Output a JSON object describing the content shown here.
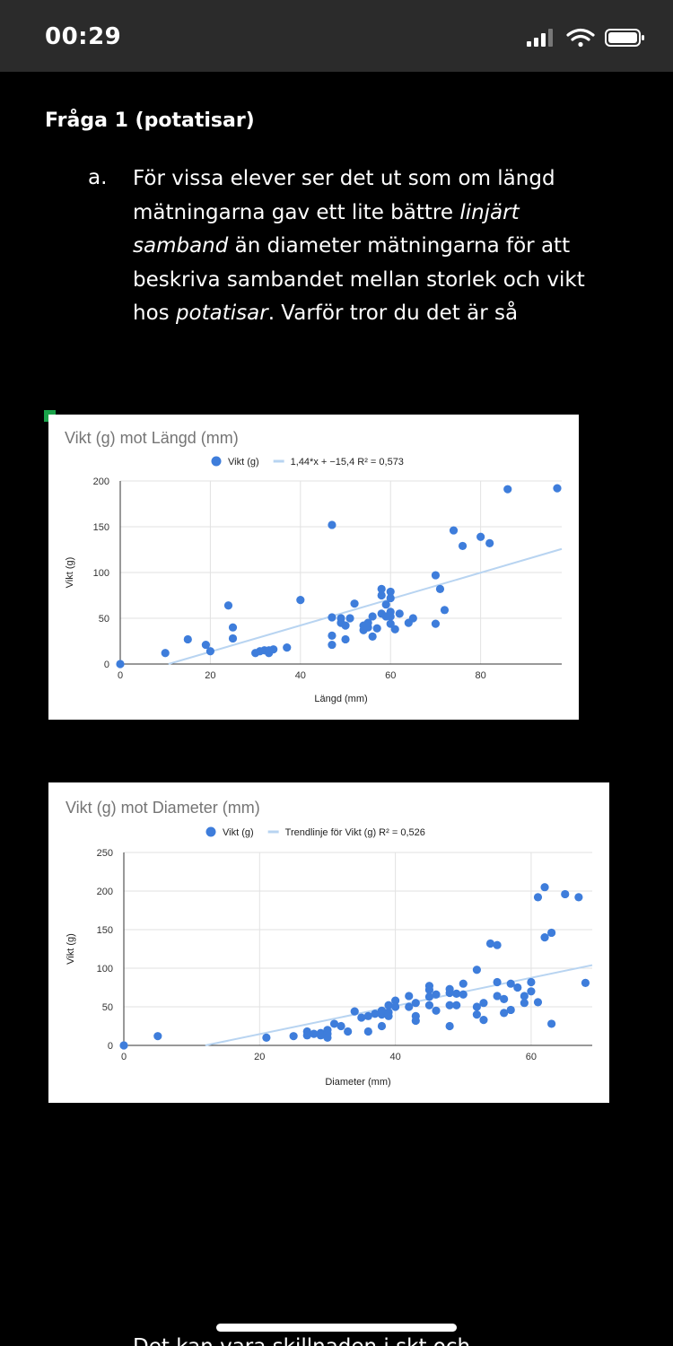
{
  "status_bar": {
    "time": "00:29"
  },
  "document": {
    "heading": "Fråga 1 (potatisar)",
    "question": {
      "marker": "a.",
      "lines": [
        [
          {
            "t": "För vissa elever ser det ut som om längd"
          }
        ],
        [
          {
            "t": "mätningarna gav ett lite bättre "
          },
          {
            "t": "linjärt",
            "i": true
          }
        ],
        [
          {
            "t": "samband",
            "i": true
          },
          {
            "t": " än diameter mätningarna för att"
          }
        ],
        [
          {
            "t": "beskriva sambandet mellan storlek och vikt"
          }
        ],
        [
          {
            "t": "hos "
          },
          {
            "t": "potatisar",
            "i": true
          },
          {
            "t": ". Varför tror du det är så"
          }
        ]
      ]
    },
    "next_text_partial": "Det kan vara skillnaden i skt och"
  },
  "chart_data": [
    {
      "type": "scatter",
      "title": "Vikt (g) mot Längd (mm)",
      "xlabel": "Längd (mm)",
      "ylabel": "Vikt (g)",
      "xlim": [
        0,
        98
      ],
      "ylim": [
        0,
        200
      ],
      "xticks": [
        0,
        20,
        40,
        60,
        80
      ],
      "yticks": [
        0,
        50,
        100,
        150,
        200
      ],
      "grid": true,
      "legend_placement": "top",
      "series": [
        {
          "name": "Vikt (g)",
          "color": "#3e7ddb",
          "points": [
            [
              0,
              0
            ],
            [
              10,
              12
            ],
            [
              15,
              27
            ],
            [
              19,
              21
            ],
            [
              20,
              14
            ],
            [
              24,
              64
            ],
            [
              25,
              40
            ],
            [
              25,
              28
            ],
            [
              30,
              12
            ],
            [
              31,
              14
            ],
            [
              32,
              15
            ],
            [
              33,
              12
            ],
            [
              33,
              15
            ],
            [
              34,
              16
            ],
            [
              37,
              18
            ],
            [
              40,
              70
            ],
            [
              47,
              152
            ],
            [
              47,
              51
            ],
            [
              47,
              31
            ],
            [
              47,
              21
            ],
            [
              49,
              50
            ],
            [
              49,
              45
            ],
            [
              50,
              42
            ],
            [
              50,
              27
            ],
            [
              51,
              50
            ],
            [
              52,
              66
            ],
            [
              54,
              37
            ],
            [
              54,
              42
            ],
            [
              55,
              40
            ],
            [
              55,
              45
            ],
            [
              56,
              52
            ],
            [
              56,
              30
            ],
            [
              57,
              39
            ],
            [
              58,
              82
            ],
            [
              58,
              75
            ],
            [
              58,
              55
            ],
            [
              59,
              65
            ],
            [
              59,
              52
            ],
            [
              60,
              79
            ],
            [
              60,
              72
            ],
            [
              60,
              57
            ],
            [
              60,
              52
            ],
            [
              60,
              44
            ],
            [
              61,
              38
            ],
            [
              62,
              55
            ],
            [
              64,
              45
            ],
            [
              65,
              50
            ],
            [
              70,
              97
            ],
            [
              70,
              44
            ],
            [
              71,
              82
            ],
            [
              72,
              59
            ],
            [
              74,
              146
            ],
            [
              76,
              129
            ],
            [
              80,
              139
            ],
            [
              82,
              132
            ],
            [
              86,
              191
            ],
            [
              97,
              192
            ]
          ]
        }
      ],
      "trendline": {
        "name": "1,44*x + −15,4 R² = 0,573",
        "slope": 1.44,
        "intercept": -15.4,
        "color": "#b8d4f1"
      }
    },
    {
      "type": "scatter",
      "title": "Vikt (g) mot Diameter (mm)",
      "xlabel": "Diameter (mm)",
      "ylabel": "Vikt (g)",
      "xlim": [
        0,
        69
      ],
      "ylim": [
        0,
        250
      ],
      "xticks": [
        0,
        20,
        40,
        60
      ],
      "yticks": [
        0,
        50,
        100,
        150,
        200,
        250
      ],
      "grid": true,
      "legend_placement": "top",
      "series": [
        {
          "name": "Vikt (g)",
          "color": "#3e7ddb",
          "points": [
            [
              0,
              0
            ],
            [
              5,
              12
            ],
            [
              21,
              10
            ],
            [
              25,
              12
            ],
            [
              27,
              18
            ],
            [
              27,
              13
            ],
            [
              28,
              15
            ],
            [
              29,
              16
            ],
            [
              29,
              13
            ],
            [
              30,
              20
            ],
            [
              30,
              15
            ],
            [
              30,
              10
            ],
            [
              31,
              28
            ],
            [
              32,
              25
            ],
            [
              33,
              18
            ],
            [
              34,
              44
            ],
            [
              35,
              36
            ],
            [
              36,
              38
            ],
            [
              36,
              18
            ],
            [
              37,
              41
            ],
            [
              38,
              40
            ],
            [
              38,
              45
            ],
            [
              38,
              25
            ],
            [
              39,
              43
            ],
            [
              39,
              38
            ],
            [
              39,
              52
            ],
            [
              40,
              58
            ],
            [
              40,
              50
            ],
            [
              42,
              64
            ],
            [
              42,
              50
            ],
            [
              43,
              55
            ],
            [
              43,
              38
            ],
            [
              43,
              32
            ],
            [
              45,
              77
            ],
            [
              45,
              72
            ],
            [
              45,
              63
            ],
            [
              45,
              52
            ],
            [
              46,
              66
            ],
            [
              46,
              45
            ],
            [
              48,
              73
            ],
            [
              48,
              68
            ],
            [
              48,
              52
            ],
            [
              48,
              25
            ],
            [
              49,
              67
            ],
            [
              49,
              52
            ],
            [
              50,
              80
            ],
            [
              50,
              66
            ],
            [
              52,
              98
            ],
            [
              52,
              50
            ],
            [
              52,
              40
            ],
            [
              53,
              55
            ],
            [
              53,
              33
            ],
            [
              54,
              132
            ],
            [
              55,
              130
            ],
            [
              55,
              82
            ],
            [
              55,
              64
            ],
            [
              56,
              60
            ],
            [
              56,
              42
            ],
            [
              57,
              80
            ],
            [
              57,
              46
            ],
            [
              58,
              75
            ],
            [
              59,
              64
            ],
            [
              59,
              55
            ],
            [
              60,
              82
            ],
            [
              60,
              70
            ],
            [
              61,
              192
            ],
            [
              61,
              56
            ],
            [
              62,
              205
            ],
            [
              62,
              140
            ],
            [
              63,
              146
            ],
            [
              63,
              28
            ],
            [
              65,
              196
            ],
            [
              67,
              192
            ],
            [
              68,
              81
            ]
          ]
        }
      ],
      "trendline": {
        "name": "Trendlinje för Vikt (g) R² = 0,526",
        "x_at_zero": 12,
        "y_at_xmax": 104,
        "color": "#b8d4f1"
      }
    }
  ]
}
